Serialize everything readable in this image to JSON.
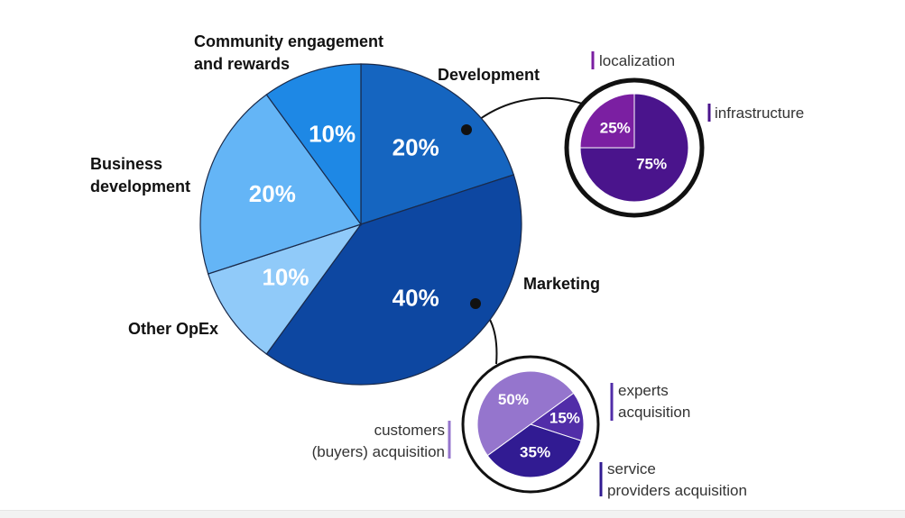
{
  "chart_data": [
    {
      "type": "pie",
      "title": "",
      "slices": [
        {
          "label": "Development",
          "value": 20,
          "display": "20%",
          "color": "#1565c0"
        },
        {
          "label": "Marketing",
          "value": 40,
          "display": "40%",
          "color": "#0d47a1"
        },
        {
          "label": "Other OpEx",
          "value": 10,
          "display": "10%",
          "color": "#90caf9"
        },
        {
          "label": "Business development",
          "value": 20,
          "display": "20%",
          "color": "#64b5f6"
        },
        {
          "label": "Community engagement and rewards",
          "value": 10,
          "display": "10%",
          "color": "#1e88e5"
        }
      ]
    },
    {
      "type": "pie",
      "title": "",
      "parent": "Development",
      "slices": [
        {
          "label": "infrastructure",
          "value": 75,
          "display": "75%",
          "color": "#4a148c"
        },
        {
          "label": "localization",
          "value": 25,
          "display": "25%",
          "color": "#7b1fa2"
        }
      ]
    },
    {
      "type": "pie",
      "title": "",
      "parent": "Marketing",
      "slices": [
        {
          "label": "experts acquisition",
          "value": 15,
          "display": "15%",
          "color": "#512da8"
        },
        {
          "label": "service providers acquisition",
          "value": 35,
          "display": "35%",
          "color": "#311b92"
        },
        {
          "label": "customers (buyers) acquisition",
          "value": 50,
          "display": "50%",
          "color": "#9575cd"
        }
      ]
    }
  ],
  "labels": {
    "development": [
      "Development"
    ],
    "marketing": [
      "Marketing"
    ],
    "other_opex": [
      "Other OpEx"
    ],
    "business_development": [
      "Business",
      "development"
    ],
    "community": [
      "Community engagement",
      "and rewards"
    ],
    "localization": [
      "localization"
    ],
    "infrastructure": [
      "infrastructure"
    ],
    "experts": [
      "experts",
      "acquisition"
    ],
    "service_providers": [
      "service",
      "providers acquisition"
    ],
    "customers": [
      "customers",
      "(buyers) acquisition"
    ]
  },
  "colors": {
    "connector": "#111111",
    "slice_border": "#1a2a4a",
    "localization_bar": "#7b1fa2",
    "infrastructure_bar": "#4a148c",
    "experts_bar": "#512da8",
    "service_bar": "#311b92",
    "customers_bar": "#9575cd"
  }
}
